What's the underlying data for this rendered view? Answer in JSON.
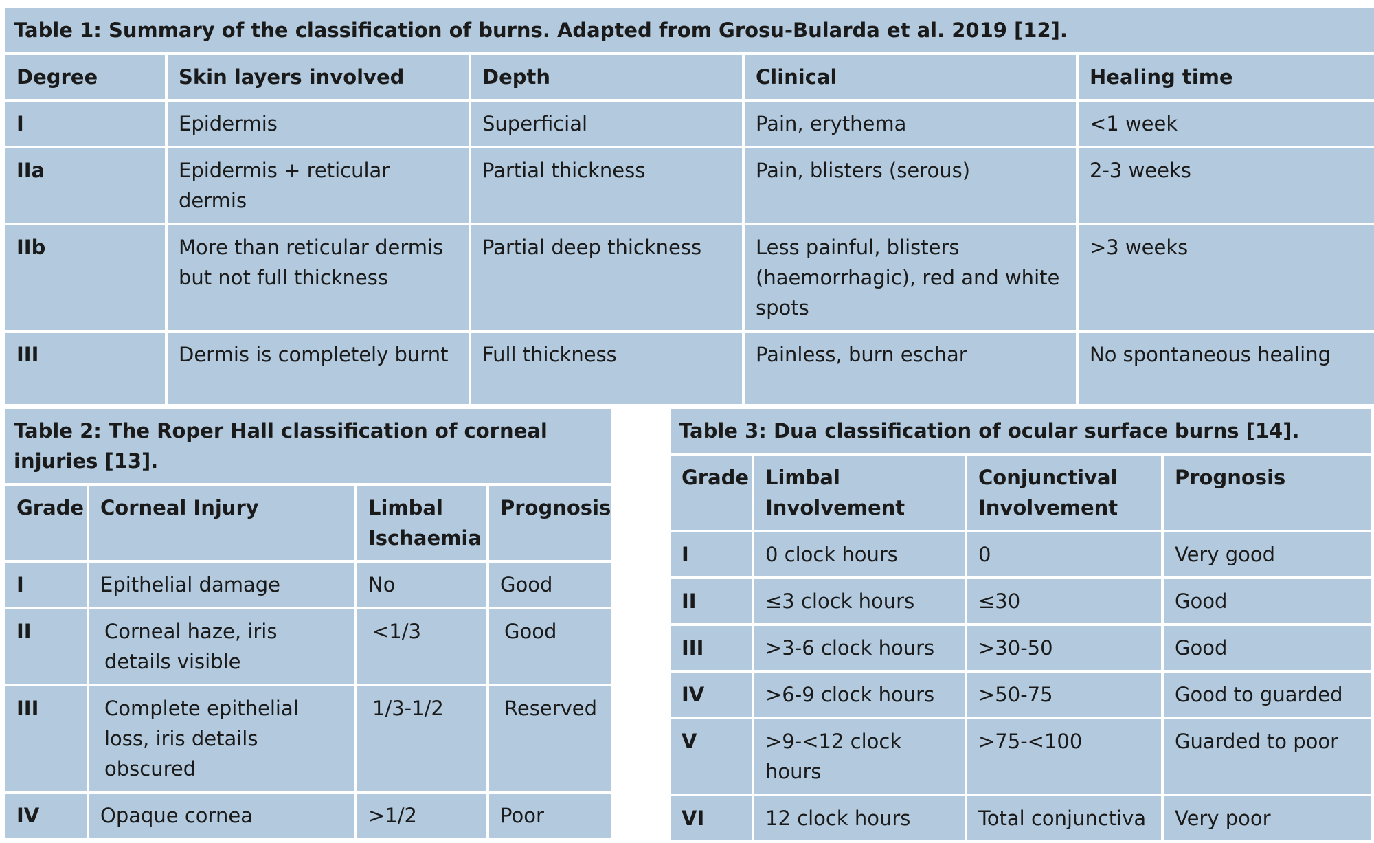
{
  "table1": {
    "caption": "Table 1: Summary of the classification of burns. Adapted from Grosu-Bularda et al. 2019 [12].",
    "headers": [
      "Degree",
      "Skin layers involved",
      "Depth",
      "Clinical",
      "Healing time"
    ],
    "rows": [
      [
        "I",
        "Epidermis",
        "Superficial",
        "Pain, erythema",
        "<1 week"
      ],
      [
        "IIa",
        "Epidermis + reticular dermis",
        "Partial thickness",
        "Pain, blisters (serous)",
        "2-3 weeks"
      ],
      [
        "IIb",
        "More than reticular dermis but not full thickness",
        "Partial deep thickness",
        "Less painful, blisters (haemorrhagic), red and white spots",
        ">3 weeks"
      ],
      [
        "III",
        "Dermis is completely burnt",
        "Full thickness",
        "Painless, burn eschar",
        "No spontaneous healing"
      ]
    ]
  },
  "table2": {
    "caption": "Table 2: The Roper Hall classification of corneal injuries [13].",
    "headers": [
      "Grade",
      "Corneal Injury",
      "Limbal Ischaemia",
      "Prognosis"
    ],
    "rows": [
      [
        "I",
        "Epithelial damage",
        "No",
        "Good"
      ],
      [
        "II",
        "Corneal haze, iris details visible",
        "<1/3",
        "Good"
      ],
      [
        "III",
        "Complete epithelial loss, iris details obscured",
        "1/3-1/2",
        "Reserved"
      ],
      [
        "IV",
        "Opaque cornea",
        ">1/2",
        "Poor"
      ]
    ]
  },
  "table3": {
    "caption": "Table 3: Dua classification of ocular surface burns [14].",
    "headers": [
      "Grade",
      "Limbal Involvement",
      "Conjunctival Involvement",
      "Prognosis"
    ],
    "rows": [
      [
        "I",
        "0 clock hours",
        "0",
        "Very good"
      ],
      [
        "II",
        "≤3 clock hours",
        "≤30",
        "Good"
      ],
      [
        "III",
        ">3-6 clock hours",
        ">30-50",
        "Good"
      ],
      [
        "IV",
        ">6-9 clock hours",
        ">50-75",
        "Good to guarded"
      ],
      [
        "V",
        ">9-<12 clock hours",
        ">75-<100",
        "Guarded to poor"
      ],
      [
        "VI",
        "12 clock hours",
        "Total conjunctiva",
        "Very poor"
      ]
    ]
  }
}
